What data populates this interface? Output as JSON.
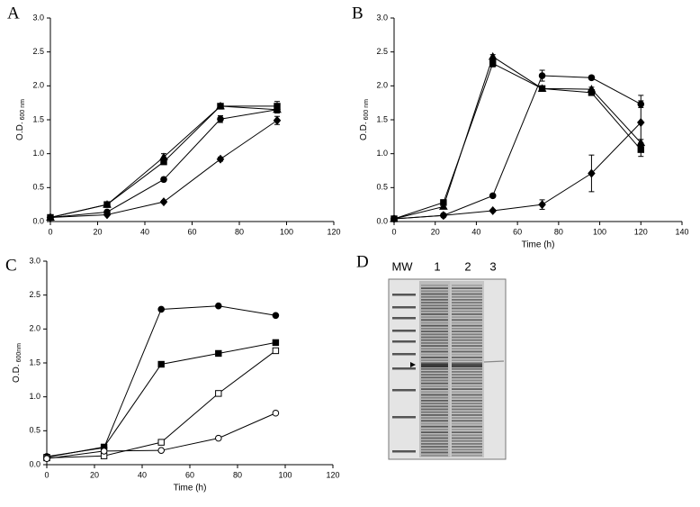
{
  "chart_data": [
    {
      "type": "line",
      "label": "A",
      "ylabel": "O.D.",
      "ylabel_sub": "600 nm",
      "xlim": [
        0,
        120
      ],
      "ylim": [
        0,
        3
      ],
      "xticks": [
        0,
        20,
        40,
        60,
        80,
        100,
        120
      ],
      "yticks": [
        {
          "value": 0,
          "label": "0.0"
        },
        0.5,
        {
          "value": 1,
          "label": "1.0"
        },
        1.5,
        {
          "value": 2,
          "label": "2.0"
        },
        2.5,
        {
          "value": 3,
          "label": "3.0"
        }
      ],
      "x": [
        0,
        24,
        48,
        72,
        96
      ],
      "series": [
        {
          "marker": "triangle",
          "fill": "#000000",
          "color": "#000000",
          "values": [
            0.06,
            0.25,
            0.95,
            1.7,
            1.65
          ],
          "errors": [
            0.01,
            0.02,
            0.05,
            0.03,
            0.05
          ]
        },
        {
          "marker": "square",
          "fill": "#000000",
          "color": "#000000",
          "values": [
            0.06,
            0.25,
            0.88,
            1.7,
            1.7
          ],
          "errors": [
            0.01,
            0.02,
            0.03,
            0.02,
            0.07
          ]
        },
        {
          "marker": "circle",
          "fill": "#000000",
          "color": "#000000",
          "values": [
            0.06,
            0.14,
            0.62,
            1.51,
            1.65
          ],
          "errors": [
            0.01,
            0.02,
            0.03,
            0.05,
            0.05
          ]
        },
        {
          "marker": "diamond",
          "fill": "#000000",
          "color": "#000000",
          "values": [
            0.06,
            0.1,
            0.29,
            0.92,
            1.49
          ],
          "errors": [
            0.01,
            0.01,
            0.02,
            0.03,
            0.06
          ]
        }
      ]
    },
    {
      "type": "line",
      "label": "B",
      "xlabel": "Time (h)",
      "ylabel": "O.D.",
      "ylabel_sub": "600 nm",
      "xlim": [
        0,
        140
      ],
      "ylim": [
        0,
        3
      ],
      "xticks": [
        0,
        20,
        40,
        60,
        80,
        100,
        120,
        140
      ],
      "yticks": [
        {
          "value": 0,
          "label": "0.0"
        },
        0.5,
        {
          "value": 1,
          "label": "1.0"
        },
        1.5,
        {
          "value": 2,
          "label": "2.0"
        },
        2.5,
        {
          "value": 3,
          "label": "3.0"
        }
      ],
      "x": [
        0,
        24,
        48,
        72,
        96,
        120
      ],
      "series": [
        {
          "marker": "circle",
          "fill": "#000000",
          "color": "#000000",
          "values": [
            0.04,
            0.09,
            0.38,
            2.15,
            2.12,
            1.73
          ],
          "errors": [
            0.01,
            0.01,
            0.02,
            0.08,
            0.03,
            0.05
          ]
        },
        {
          "marker": "square",
          "fill": "#000000",
          "color": "#000000",
          "values": [
            0.04,
            0.28,
            2.33,
            1.96,
            1.9,
            1.06
          ],
          "errors": [
            0.01,
            0.04,
            0.05,
            0.03,
            0.04,
            0.1
          ]
        },
        {
          "marker": "triangle",
          "fill": "#000000",
          "color": "#000000",
          "values": [
            0.04,
            0.22,
            2.43,
            1.96,
            1.95,
            1.16
          ],
          "errors": [
            0.01,
            0.03,
            0.03,
            0.03,
            0.03,
            0.05
          ]
        },
        {
          "marker": "diamond",
          "fill": "#000000",
          "color": "#000000",
          "values": [
            0.04,
            0.09,
            0.16,
            0.25,
            0.71,
            1.46
          ],
          "errors": [
            0.01,
            0.01,
            0.02,
            0.07,
            0.27,
            0.4
          ]
        }
      ]
    },
    {
      "type": "line",
      "label": "C",
      "xlabel": "Time (h)",
      "ylabel": "O.D.",
      "ylabel_sub": "600nm",
      "xlim": [
        0,
        120
      ],
      "ylim": [
        0,
        3
      ],
      "xticks": [
        0,
        20,
        40,
        60,
        80,
        100,
        120
      ],
      "yticks": [
        {
          "value": 0,
          "label": "0.0"
        },
        0.5,
        {
          "value": 1,
          "label": "1.0"
        },
        1.5,
        {
          "value": 2,
          "label": "2.0"
        },
        2.5,
        {
          "value": 3,
          "label": "3.0"
        }
      ],
      "x": [
        0,
        24,
        48,
        72,
        96
      ],
      "series": [
        {
          "marker": "circle",
          "fill": "#000000",
          "color": "#000000",
          "values": [
            0.12,
            0.25,
            2.29,
            2.34,
            2.2
          ]
        },
        {
          "marker": "square",
          "fill": "#000000",
          "color": "#000000",
          "values": [
            0.11,
            0.26,
            1.48,
            1.64,
            1.8
          ]
        },
        {
          "marker": "square",
          "fill": "#ffffff",
          "color": "#000000",
          "values": [
            0.1,
            0.13,
            0.33,
            1.05,
            1.68
          ]
        },
        {
          "marker": "circle",
          "fill": "#ffffff",
          "color": "#000000",
          "values": [
            0.09,
            0.2,
            0.21,
            0.39,
            0.76
          ]
        }
      ]
    },
    {
      "type": "gel",
      "label": "D",
      "lanes": [
        "MW",
        "1",
        "2",
        "3"
      ]
    }
  ]
}
